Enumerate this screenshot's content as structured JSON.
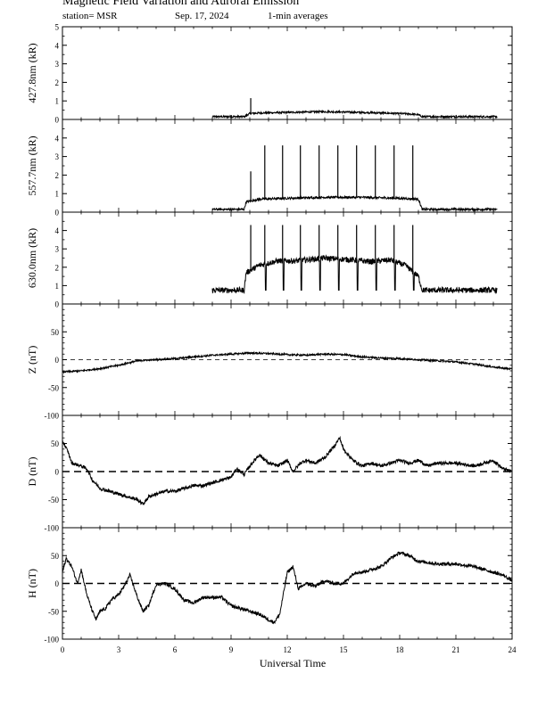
{
  "header": {
    "title": "Magnetic Field Variation and Auroral Emission",
    "station": "station= MSR",
    "date": "Sep. 17, 2024",
    "averaging": "1-min averages"
  },
  "chart_data": [
    {
      "type": "line",
      "ylabel": "427.8nm (kR)",
      "ylim": [
        0,
        5
      ],
      "yticks": [
        0,
        1,
        2,
        3,
        4,
        5
      ],
      "xlim": [
        0,
        24
      ],
      "x": [
        8.0,
        9.7,
        10.0,
        10.5,
        12,
        14,
        15,
        17,
        18.5,
        19.0,
        19.2,
        23.2
      ],
      "values": [
        0.15,
        0.15,
        0.32,
        0.35,
        0.38,
        0.42,
        0.4,
        0.35,
        0.3,
        0.25,
        0.15,
        0.15
      ],
      "spikes": [
        {
          "x": 10.05,
          "value": 1.15
        }
      ],
      "noise": 0.05
    },
    {
      "type": "line",
      "ylabel": "557.7nm (kR)",
      "ylim": [
        0,
        5
      ],
      "yticks": [
        0,
        1,
        2,
        3,
        4
      ],
      "xlim": [
        0,
        24
      ],
      "x": [
        8.0,
        9.7,
        9.8,
        10.5,
        12,
        14,
        16,
        18,
        19.0,
        19.2,
        23.2
      ],
      "values": [
        0.15,
        0.15,
        0.55,
        0.7,
        0.75,
        0.8,
        0.8,
        0.75,
        0.7,
        0.15,
        0.15
      ],
      "spikes": [
        {
          "x": 10.05,
          "value": 2.2
        },
        {
          "x": 10.8,
          "value": 3.6
        },
        {
          "x": 11.75,
          "value": 3.6
        },
        {
          "x": 12.7,
          "value": 3.6
        },
        {
          "x": 13.7,
          "value": 3.6
        },
        {
          "x": 14.7,
          "value": 3.6
        },
        {
          "x": 15.7,
          "value": 3.6
        },
        {
          "x": 16.7,
          "value": 3.6
        },
        {
          "x": 17.7,
          "value": 3.6
        },
        {
          "x": 18.7,
          "value": 3.6
        }
      ],
      "noise": 0.06
    },
    {
      "type": "line",
      "ylabel": "630.0nm (kR)",
      "ylim": [
        0,
        5
      ],
      "yticks": [
        0,
        1,
        2,
        3,
        4
      ],
      "xlim": [
        0,
        24
      ],
      "x": [
        8.0,
        9.7,
        9.8,
        10.5,
        11.5,
        12.5,
        14,
        15.5,
        16.5,
        17.5,
        18.3,
        19.0,
        19.2,
        23.2
      ],
      "values": [
        0.75,
        0.75,
        1.7,
        2.1,
        2.35,
        2.35,
        2.5,
        2.4,
        2.3,
        2.4,
        2.1,
        1.5,
        0.75,
        0.75
      ],
      "spikes": [
        {
          "x": 10.05,
          "value": 4.3
        },
        {
          "x": 10.8,
          "value": 4.3
        },
        {
          "x": 11.75,
          "value": 4.3
        },
        {
          "x": 12.7,
          "value": 4.3
        },
        {
          "x": 13.7,
          "value": 4.3
        },
        {
          "x": 14.7,
          "value": 4.3
        },
        {
          "x": 15.7,
          "value": 4.3
        },
        {
          "x": 16.7,
          "value": 4.3
        },
        {
          "x": 17.7,
          "value": 4.3
        },
        {
          "x": 18.7,
          "value": 4.3
        }
      ],
      "dips": [
        10.8,
        11.75,
        12.7,
        13.7,
        14.7,
        15.7,
        16.7,
        17.7,
        18.7
      ],
      "dip_value": 0.75,
      "noise": 0.15
    },
    {
      "type": "line",
      "ylabel": "Z (nT)",
      "ylim": [
        -100,
        100
      ],
      "yticks": [
        -100,
        -50,
        0,
        50
      ],
      "xlim": [
        0,
        24
      ],
      "zero_line": "thin-dashed",
      "x": [
        0,
        0.5,
        1,
        1.5,
        2,
        2.5,
        3,
        3.5,
        4,
        5,
        6,
        7,
        8,
        9,
        10,
        11,
        12,
        13,
        14,
        15,
        16,
        17,
        18,
        19,
        20,
        21,
        22,
        23,
        24
      ],
      "values": [
        -22,
        -21,
        -20,
        -18,
        -16,
        -13,
        -10,
        -6,
        -2,
        0,
        2,
        5,
        8,
        10,
        12,
        11,
        9,
        8,
        10,
        9,
        5,
        3,
        2,
        0,
        -2,
        -4,
        -8,
        -13,
        -17
      ],
      "noise": 1.5
    },
    {
      "type": "line",
      "ylabel": "D (nT)",
      "ylim": [
        -100,
        100
      ],
      "yticks": [
        -100,
        -50,
        0,
        50
      ],
      "xlim": [
        0,
        24
      ],
      "zero_line": "dashed",
      "x": [
        0,
        0.3,
        0.5,
        1,
        1.3,
        1.6,
        2,
        2.5,
        3,
        3.5,
        4,
        4.3,
        4.6,
        5,
        5.5,
        6,
        6.5,
        7,
        7.5,
        8,
        8.5,
        9,
        9.3,
        9.7,
        10,
        10.5,
        11,
        11.5,
        12,
        12.3,
        12.7,
        13,
        13.5,
        14,
        14.5,
        14.8,
        15,
        15.5,
        16,
        16.5,
        17,
        17.5,
        18,
        18.5,
        19,
        19.5,
        20,
        21,
        22,
        23,
        23.5,
        24
      ],
      "values": [
        55,
        35,
        15,
        10,
        5,
        -15,
        -30,
        -35,
        -40,
        -45,
        -50,
        -58,
        -45,
        -40,
        -35,
        -35,
        -30,
        -25,
        -25,
        -20,
        -15,
        -10,
        5,
        -5,
        10,
        30,
        15,
        10,
        20,
        0,
        15,
        20,
        15,
        25,
        45,
        60,
        40,
        20,
        10,
        15,
        10,
        15,
        20,
        15,
        20,
        10,
        15,
        15,
        10,
        20,
        5,
        0
      ],
      "noise": 3
    },
    {
      "type": "line",
      "ylabel": "H (nT)",
      "ylim": [
        -100,
        100
      ],
      "yticks": [
        -100,
        -50,
        0,
        50
      ],
      "xlim": [
        0,
        24
      ],
      "zero_line": "dashed",
      "x": [
        0,
        0.2,
        0.5,
        0.8,
        1,
        1.3,
        1.6,
        1.8,
        2,
        2.3,
        2.6,
        3,
        3.3,
        3.6,
        4,
        4.3,
        4.6,
        5,
        5.5,
        6,
        6.5,
        7,
        7.5,
        8,
        8.5,
        9,
        9.5,
        10,
        10.5,
        11,
        11.3,
        11.6,
        12,
        12.3,
        12.6,
        13,
        13.5,
        14,
        14.5,
        15,
        15.3,
        15.6,
        16,
        17,
        17.5,
        18,
        18.5,
        19,
        20,
        21,
        22,
        23,
        23.5,
        24
      ],
      "values": [
        20,
        45,
        30,
        0,
        25,
        -20,
        -50,
        -65,
        -50,
        -45,
        -30,
        -20,
        -5,
        15,
        -25,
        -50,
        -40,
        -2,
        0,
        -10,
        -30,
        -35,
        -25,
        -25,
        -25,
        -40,
        -45,
        -50,
        -55,
        -65,
        -70,
        -55,
        20,
        30,
        -10,
        0,
        -5,
        5,
        0,
        0,
        10,
        20,
        20,
        30,
        45,
        55,
        50,
        40,
        35,
        35,
        30,
        20,
        15,
        5
      ],
      "noise": 3
    }
  ],
  "x_axis": {
    "label": "Universal Time",
    "ticks": [
      "0",
      "3",
      "6",
      "9",
      "12",
      "15",
      "18",
      "21",
      "24"
    ]
  }
}
